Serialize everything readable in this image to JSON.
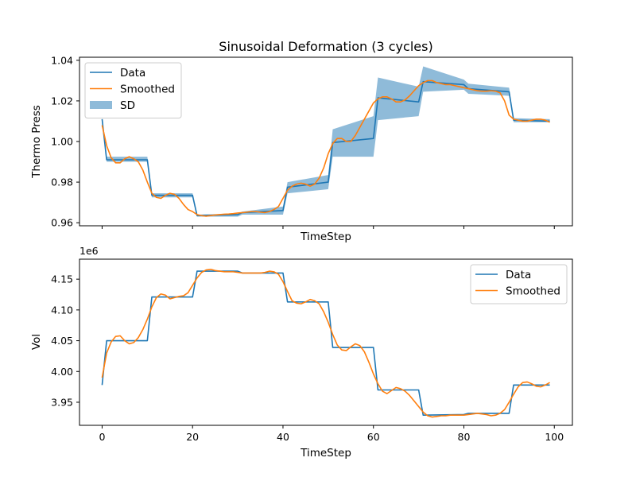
{
  "colors": {
    "data": "#1f77b4",
    "smoothed": "#ff7f0e",
    "sd": "#1f77b4"
  },
  "chart_data": [
    {
      "type": "line",
      "title": "Sinusoidal Deformation (3 cycles)",
      "xlabel": "TimeStep",
      "ylabel": "Thermo Press",
      "xlim": [
        -5,
        104
      ],
      "ylim": [
        0.9585,
        1.0415
      ],
      "yticks": [
        0.96,
        0.98,
        1.0,
        1.02,
        1.04
      ],
      "ytick_labels": [
        "0.96",
        "0.98",
        "1.00",
        "1.02",
        "1.04"
      ],
      "xticks": [
        0,
        20,
        40,
        60,
        80,
        100
      ],
      "show_xtick_labels": false,
      "legend": {
        "position": "top-left",
        "entries": [
          "Data",
          "Smoothed",
          "SD"
        ]
      },
      "series": [
        {
          "name": "Data",
          "kind": "step",
          "x": [
            0,
            1,
            10,
            11,
            20,
            21,
            30,
            31,
            40,
            41,
            50,
            51,
            60,
            61,
            70,
            71,
            80,
            81,
            90,
            91,
            99
          ],
          "values": [
            1.011,
            0.991,
            0.991,
            0.9735,
            0.9735,
            0.9635,
            0.964,
            0.965,
            0.966,
            0.9775,
            0.98,
            0.9995,
            1.0015,
            1.0215,
            1.0195,
            1.0295,
            1.028,
            1.026,
            1.0245,
            1.0105,
            1.01
          ]
        },
        {
          "name": "Smoothed",
          "kind": "line",
          "x": [
            0,
            1,
            2,
            3,
            4,
            5,
            6,
            7,
            8,
            9,
            10,
            11,
            12,
            13,
            14,
            15,
            16,
            17,
            18,
            19,
            20,
            21,
            22,
            23,
            24,
            25,
            26,
            27,
            28,
            29,
            30,
            31,
            32,
            33,
            34,
            35,
            36,
            37,
            38,
            39,
            40,
            41,
            42,
            43,
            44,
            45,
            46,
            47,
            48,
            49,
            50,
            51,
            52,
            53,
            54,
            55,
            56,
            57,
            58,
            59,
            60,
            61,
            62,
            63,
            64,
            65,
            66,
            67,
            68,
            69,
            70,
            71,
            72,
            73,
            74,
            75,
            76,
            77,
            78,
            79,
            80,
            81,
            82,
            83,
            84,
            85,
            86,
            87,
            88,
            89,
            90,
            91,
            92,
            93,
            94,
            95,
            96,
            97,
            98,
            99
          ],
          "values": [
            1.008,
            0.998,
            0.992,
            0.9895,
            0.9895,
            0.9915,
            0.9925,
            0.9915,
            0.99,
            0.986,
            0.98,
            0.9745,
            0.9725,
            0.972,
            0.9735,
            0.9745,
            0.974,
            0.972,
            0.969,
            0.9665,
            0.9655,
            0.964,
            0.9635,
            0.9632,
            0.9635,
            0.9638,
            0.964,
            0.9642,
            0.9643,
            0.9645,
            0.9648,
            0.965,
            0.9652,
            0.9655,
            0.9655,
            0.9652,
            0.965,
            0.9655,
            0.9665,
            0.968,
            0.972,
            0.976,
            0.978,
            0.979,
            0.9795,
            0.979,
            0.978,
            0.979,
            0.982,
            0.987,
            0.994,
            0.999,
            1.0015,
            1.0015,
            1.0,
            1.0,
            1.003,
            1.007,
            1.011,
            1.015,
            1.019,
            1.021,
            1.022,
            1.022,
            1.021,
            1.0195,
            1.0195,
            1.0205,
            1.0225,
            1.025,
            1.0275,
            1.029,
            1.03,
            1.03,
            1.029,
            1.0285,
            1.028,
            1.028,
            1.0275,
            1.027,
            1.0265,
            1.026,
            1.0255,
            1.025,
            1.0248,
            1.0248,
            1.025,
            1.0248,
            1.024,
            1.02,
            1.013,
            1.011,
            1.0105,
            1.01,
            1.01,
            1.0105,
            1.011,
            1.011,
            1.0105,
            1.0095
          ]
        },
        {
          "name": "SD",
          "kind": "band",
          "x": [
            1,
            10,
            11,
            20,
            21,
            30,
            31,
            40,
            41,
            50,
            51,
            60,
            61,
            70,
            71,
            80,
            81,
            90,
            91,
            99
          ],
          "lower": [
            0.99,
            0.99,
            0.9725,
            0.9725,
            0.963,
            0.963,
            0.964,
            0.964,
            0.9745,
            0.9765,
            0.9925,
            0.9925,
            1.0105,
            1.0125,
            1.0245,
            1.0255,
            1.0235,
            1.0225,
            1.0095,
            1.0095
          ],
          "upper": [
            0.9925,
            0.9925,
            0.9745,
            0.9745,
            0.964,
            0.9645,
            0.9655,
            0.968,
            0.98,
            0.9835,
            1.006,
            1.0125,
            1.0315,
            1.027,
            1.037,
            1.0305,
            1.0285,
            1.0265,
            1.0115,
            1.011
          ]
        }
      ]
    },
    {
      "type": "line",
      "title": "",
      "xlabel": "TimeStep",
      "ylabel": "Vol",
      "offset_label": "1e6",
      "xlim": [
        -5,
        104
      ],
      "ylim": [
        3.9125,
        4.1825
      ],
      "yticks": [
        3.95,
        4.0,
        4.05,
        4.1,
        4.15
      ],
      "ytick_labels": [
        "3.95",
        "4.00",
        "4.05",
        "4.10",
        "4.15"
      ],
      "xticks": [
        0,
        20,
        40,
        60,
        80,
        100
      ],
      "xtick_labels": [
        "0",
        "20",
        "40",
        "60",
        "80",
        "100"
      ],
      "legend": {
        "position": "top-right",
        "entries": [
          "Data",
          "Smoothed"
        ]
      },
      "series": [
        {
          "name": "Data",
          "kind": "step",
          "x": [
            0,
            1,
            10,
            11,
            20,
            21,
            30,
            31,
            40,
            41,
            50,
            51,
            60,
            61,
            70,
            71,
            80,
            81,
            90,
            91,
            99
          ],
          "values": [
            3.978,
            4.05,
            4.05,
            4.121,
            4.121,
            4.163,
            4.163,
            4.16,
            4.16,
            4.113,
            4.113,
            4.039,
            4.039,
            3.97,
            3.97,
            3.929,
            3.93,
            3.932,
            3.932,
            3.978,
            3.978
          ]
        },
        {
          "name": "Smoothed",
          "kind": "line",
          "x": [
            0,
            1,
            2,
            3,
            4,
            5,
            6,
            7,
            8,
            9,
            10,
            11,
            12,
            13,
            14,
            15,
            16,
            17,
            18,
            19,
            20,
            21,
            22,
            23,
            24,
            25,
            26,
            27,
            28,
            29,
            30,
            31,
            32,
            33,
            34,
            35,
            36,
            37,
            38,
            39,
            40,
            41,
            42,
            43,
            44,
            45,
            46,
            47,
            48,
            49,
            50,
            51,
            52,
            53,
            54,
            55,
            56,
            57,
            58,
            59,
            60,
            61,
            62,
            63,
            64,
            65,
            66,
            67,
            68,
            69,
            70,
            71,
            72,
            73,
            74,
            75,
            76,
            77,
            78,
            79,
            80,
            81,
            82,
            83,
            84,
            85,
            86,
            87,
            88,
            89,
            90,
            91,
            92,
            93,
            94,
            95,
            96,
            97,
            98,
            99
          ],
          "values": [
            3.99,
            4.03,
            4.048,
            4.057,
            4.058,
            4.05,
            4.045,
            4.047,
            4.055,
            4.068,
            4.085,
            4.105,
            4.12,
            4.126,
            4.124,
            4.118,
            4.12,
            4.122,
            4.123,
            4.128,
            4.14,
            4.152,
            4.161,
            4.165,
            4.166,
            4.164,
            4.163,
            4.162,
            4.162,
            4.162,
            4.161,
            4.16,
            4.16,
            4.16,
            4.16,
            4.16,
            4.161,
            4.163,
            4.162,
            4.158,
            4.146,
            4.13,
            4.115,
            4.111,
            4.11,
            4.113,
            4.117,
            4.115,
            4.11,
            4.097,
            4.08,
            4.06,
            4.043,
            4.035,
            4.034,
            4.04,
            4.045,
            4.042,
            4.032,
            4.015,
            3.996,
            3.98,
            3.968,
            3.964,
            3.969,
            3.974,
            3.972,
            3.968,
            3.961,
            3.952,
            3.943,
            3.934,
            3.928,
            3.926,
            3.927,
            3.928,
            3.928,
            3.929,
            3.929,
            3.929,
            3.929,
            3.93,
            3.931,
            3.932,
            3.931,
            3.93,
            3.928,
            3.929,
            3.932,
            3.938,
            3.95,
            3.963,
            3.975,
            3.982,
            3.983,
            3.98,
            3.976,
            3.975,
            3.978,
            3.982
          ]
        }
      ]
    }
  ]
}
